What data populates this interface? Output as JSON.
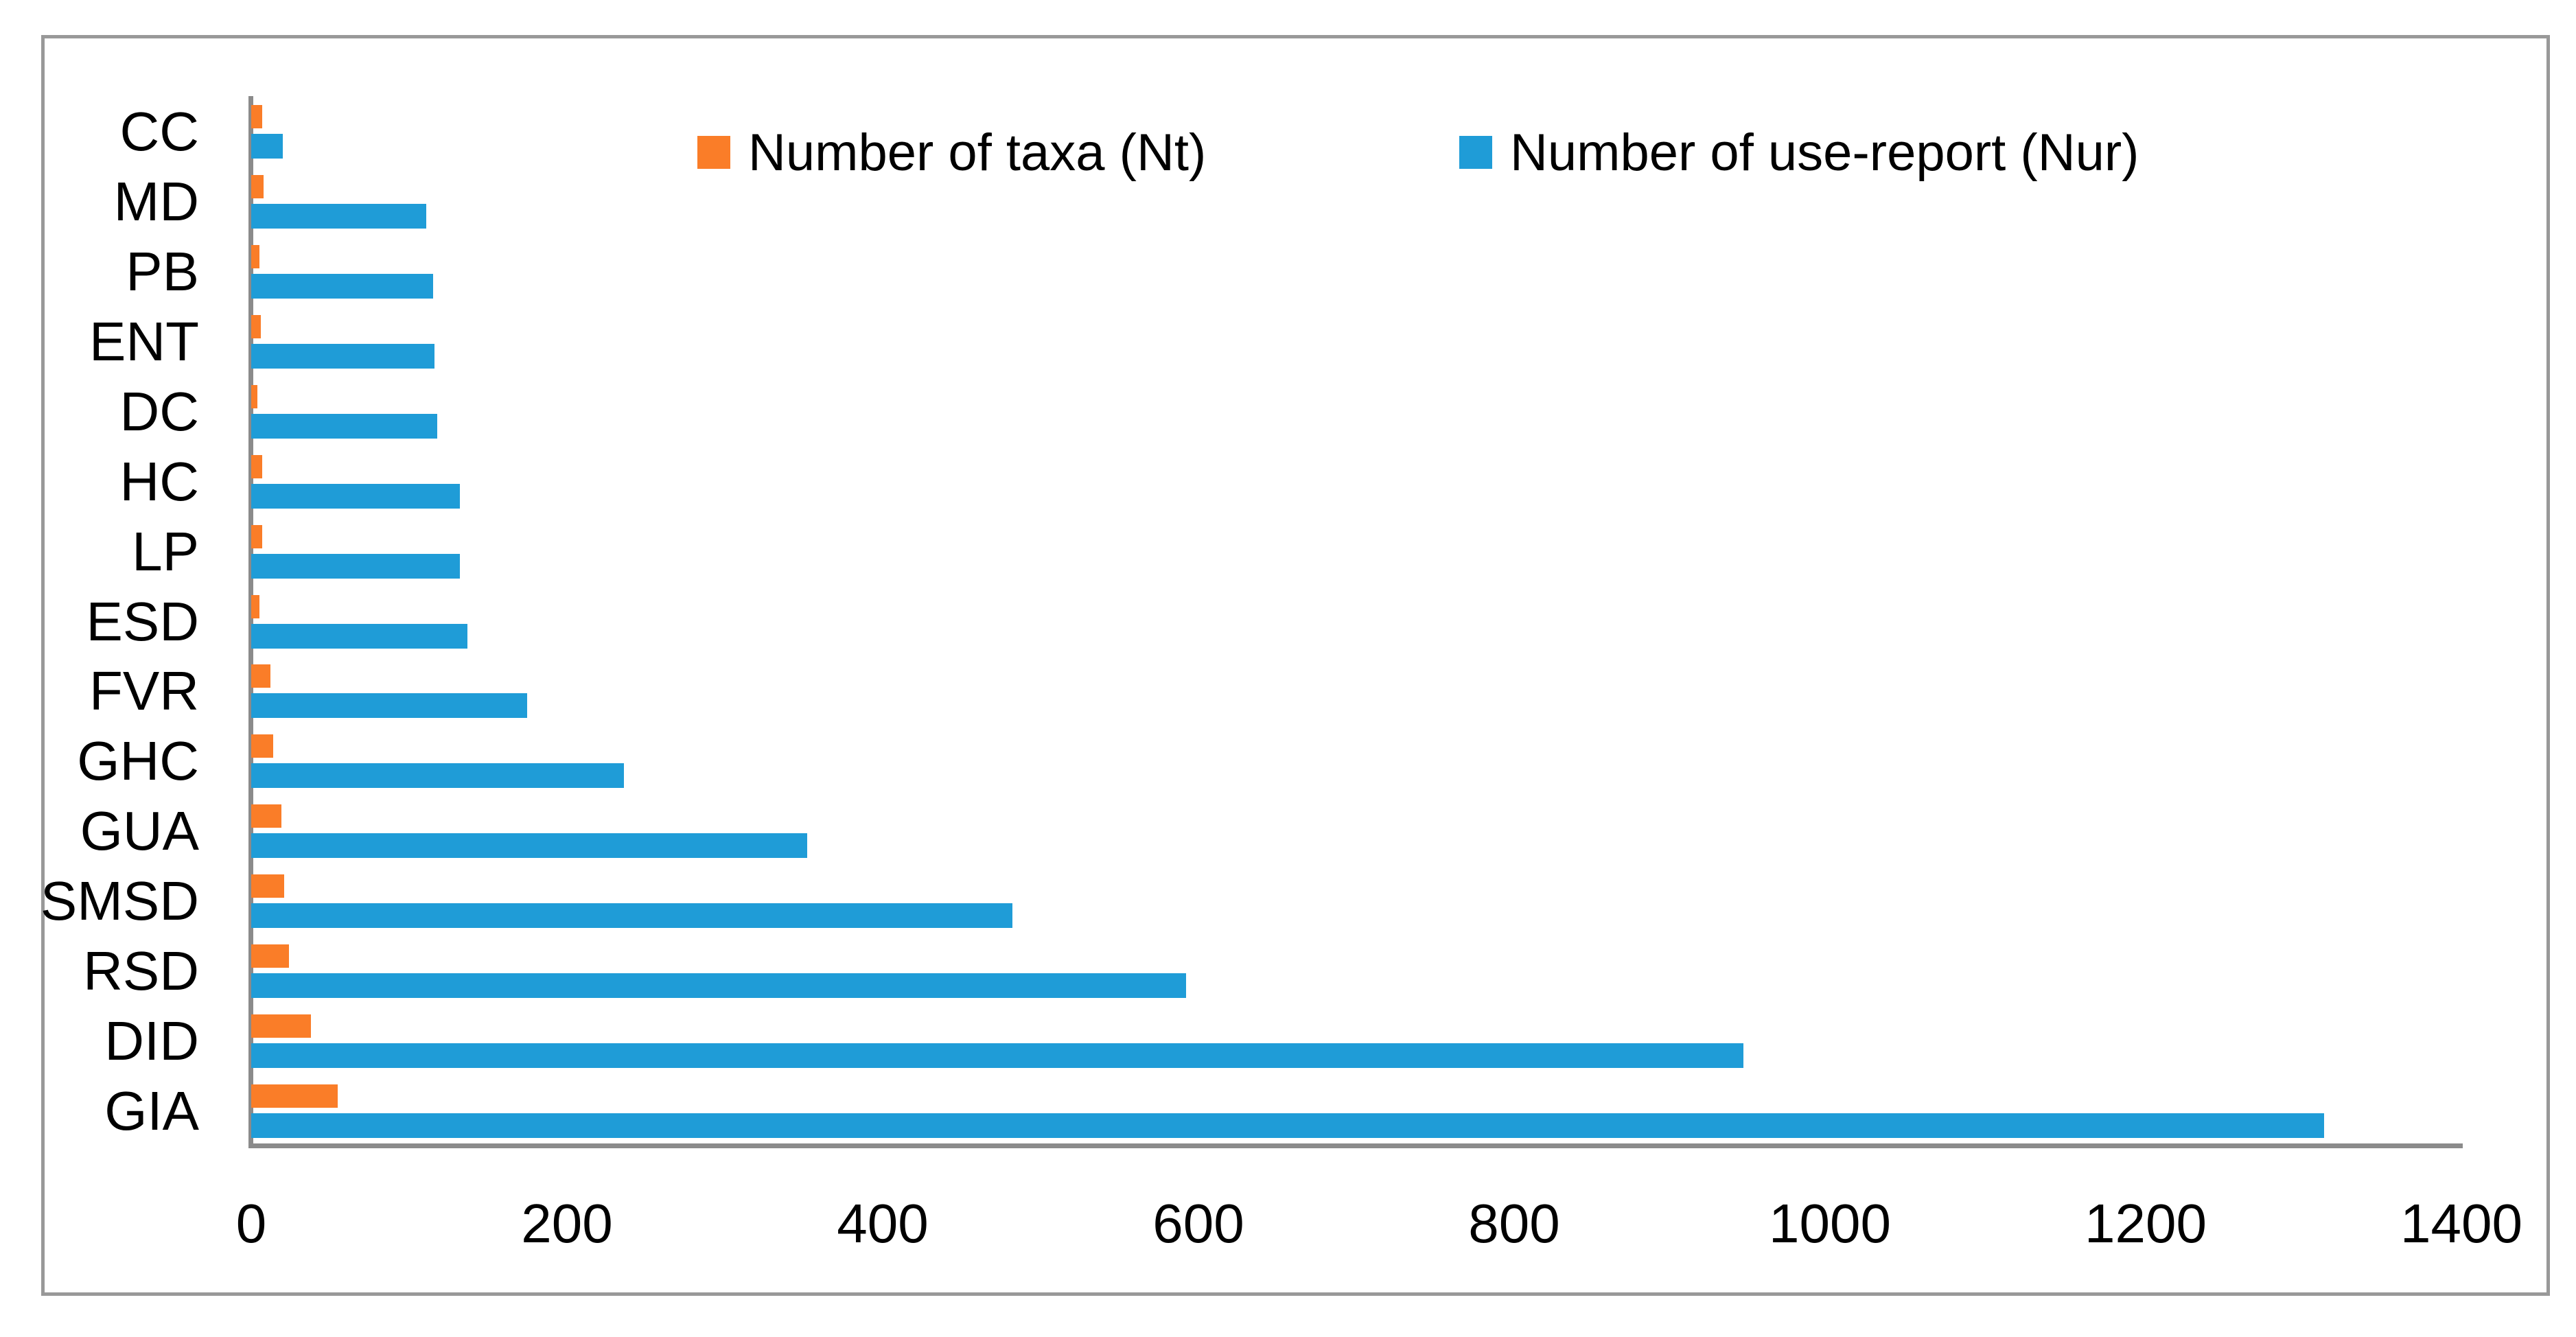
{
  "figure": {
    "background": "#ffffff",
    "border_color": "#999999",
    "axis_color": "#8b8b8b"
  },
  "legend": {
    "items": [
      {
        "label": "Number of taxa (Nt)",
        "color": "#fa7d28"
      },
      {
        "label": "Number of use-report (Nur)",
        "color": "#1f9cd7"
      }
    ]
  },
  "chart_data": {
    "type": "bar",
    "orientation": "horizontal",
    "title": "",
    "xlabel": "",
    "ylabel": "",
    "grid": false,
    "legend_position": "top-center-inside",
    "xlim": [
      0,
      1400
    ],
    "x_ticks": [
      "0",
      "200",
      "400",
      "600",
      "800",
      "1000",
      "1200",
      "1400"
    ],
    "categories": [
      "CC",
      "MD",
      "PB",
      "ENT",
      "DC",
      "HC",
      "LP",
      "ESD",
      "FVR",
      "GHC",
      "GUA",
      "SMSD",
      "RSD",
      "DID",
      "GIA"
    ],
    "series": [
      {
        "name": "Number of taxa (Nt)",
        "color": "#fa7d28",
        "values": [
          7,
          8,
          5,
          6,
          4,
          7,
          7,
          5,
          12,
          14,
          19,
          21,
          24,
          38,
          55
        ]
      },
      {
        "name": "Number of use-report (Nur)",
        "color": "#1f9cd7",
        "values": [
          20,
          111,
          115,
          116,
          118,
          132,
          132,
          137,
          175,
          236,
          352,
          482,
          592,
          945,
          1313
        ]
      }
    ]
  }
}
